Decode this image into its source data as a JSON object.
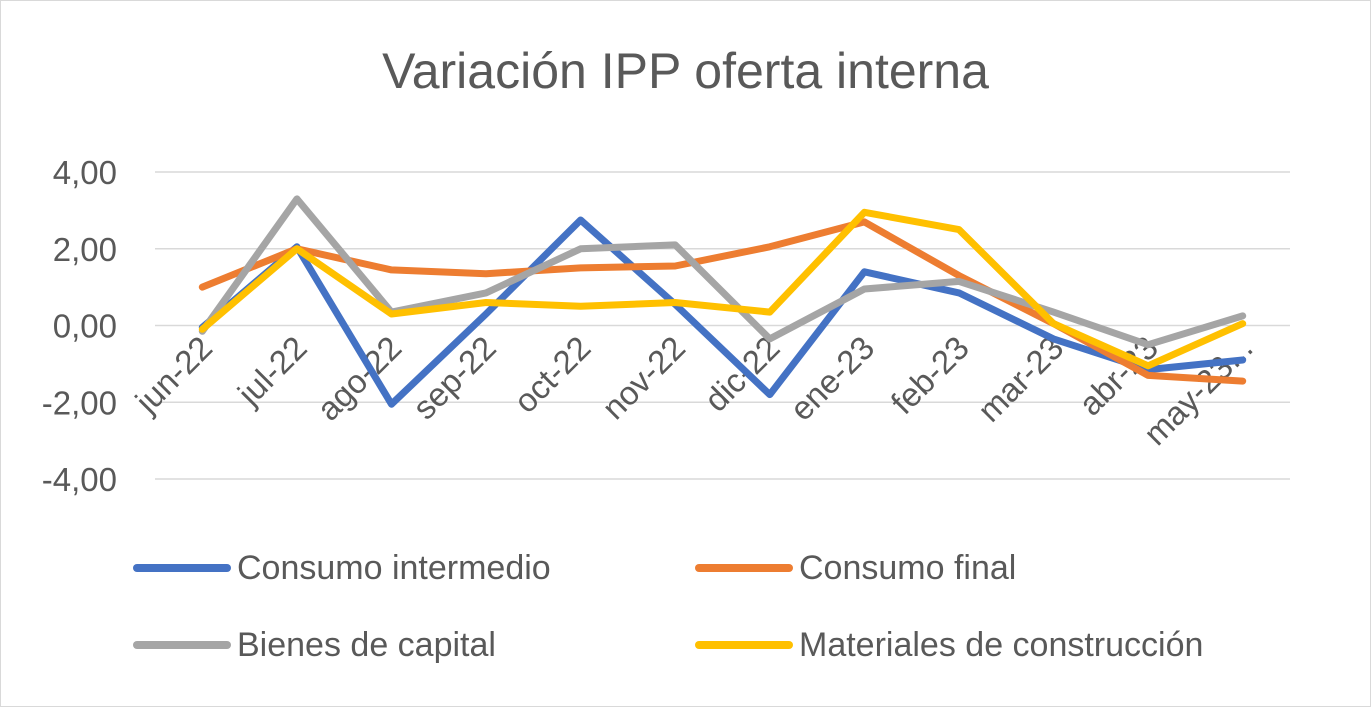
{
  "chart_data": {
    "type": "line",
    "title": "Variación IPP oferta interna",
    "categories": [
      "jun-22",
      "jul-22",
      "ago-22",
      "sep-22",
      "oct-22",
      "nov-22",
      "dic-22",
      "ene-23",
      "feb-23",
      "mar-23",
      "abr-23",
      "may-23..."
    ],
    "y_ticks": [
      "4,00",
      "2,00",
      "0,00",
      "-2,00",
      "-4,00"
    ],
    "ylim": [
      -4,
      4
    ],
    "grid": true,
    "legend_position": "bottom",
    "series": [
      {
        "name": "Consumo intermedio",
        "color": "#4472c4",
        "values": [
          -0.05,
          2.05,
          -2.05,
          0.3,
          2.75,
          0.55,
          -1.8,
          1.4,
          0.85,
          -0.35,
          -1.15,
          -0.9
        ]
      },
      {
        "name": "Consumo final",
        "color": "#ed7d31",
        "values": [
          1.0,
          2.0,
          1.45,
          1.35,
          1.5,
          1.55,
          2.05,
          2.7,
          1.3,
          0.05,
          -1.3,
          -1.45
        ]
      },
      {
        "name": "Bienes de capital",
        "color": "#a5a5a5",
        "values": [
          -0.15,
          3.3,
          0.35,
          0.85,
          2.0,
          2.1,
          -0.35,
          0.95,
          1.15,
          0.35,
          -0.5,
          0.25
        ]
      },
      {
        "name": "Materiales de construcción",
        "color": "#ffc000",
        "values": [
          -0.1,
          2.0,
          0.3,
          0.6,
          0.5,
          0.6,
          0.35,
          2.95,
          2.5,
          0.05,
          -1.05,
          0.05
        ]
      }
    ]
  }
}
